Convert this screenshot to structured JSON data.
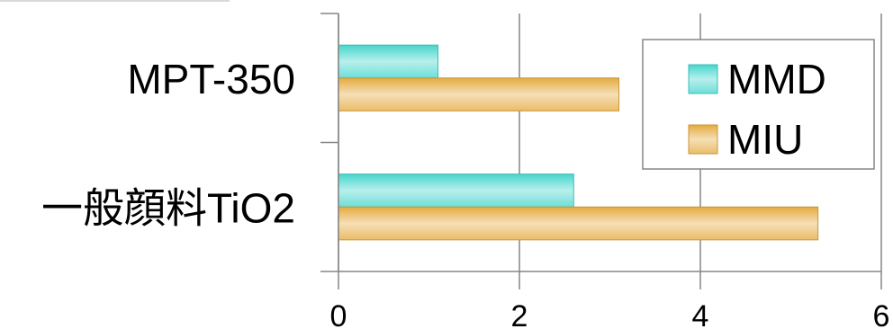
{
  "chart_data": {
    "type": "bar",
    "orientation": "horizontal",
    "categories": [
      "MPT-350",
      "一般顔料TiO2"
    ],
    "series": [
      {
        "name": "MMD",
        "values": [
          1.1,
          2.6
        ],
        "color": "#45d6cd"
      },
      {
        "name": "MIU",
        "values": [
          3.1,
          5.3
        ],
        "color": "#e4ab3f"
      }
    ],
    "xlim": [
      0,
      6
    ],
    "xticks": [
      0,
      2,
      4,
      6
    ],
    "grid": true,
    "legend": "top-right"
  }
}
